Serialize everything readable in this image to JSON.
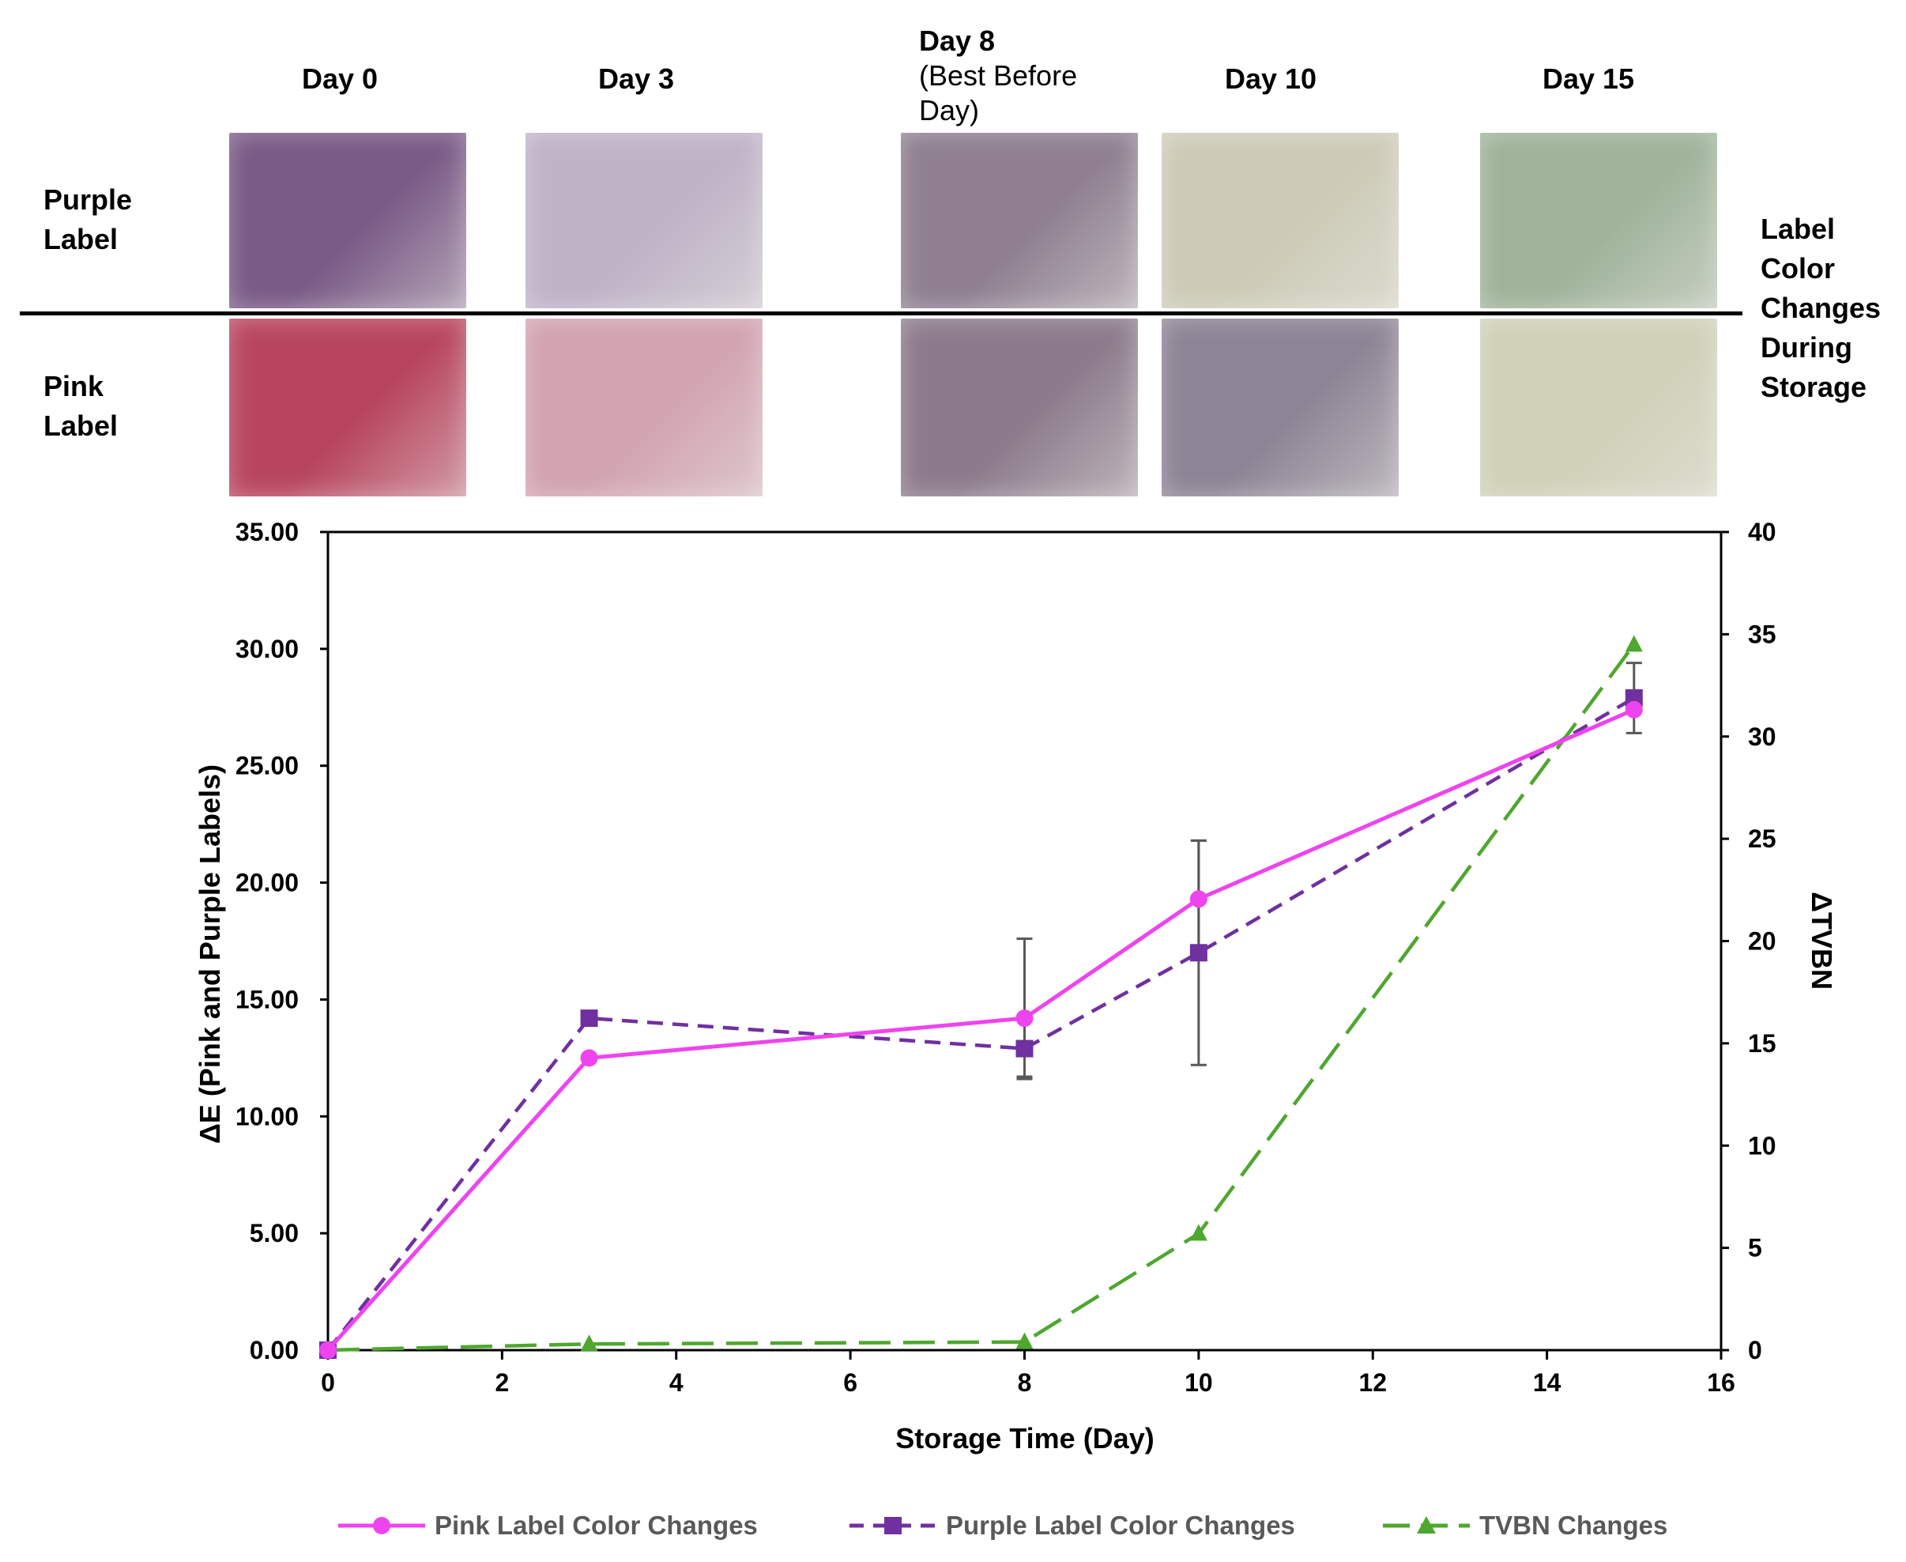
{
  "panel": {
    "days": [
      {
        "label": "Day 0"
      },
      {
        "label": "Day 3"
      },
      {
        "label": "Day 8",
        "note": "(Best Before Day)"
      },
      {
        "label": "Day 10"
      },
      {
        "label": "Day 15"
      }
    ],
    "rows": [
      {
        "label": "Purple Label",
        "swatches": [
          "#7a5a86",
          "#bfb3c7",
          "#8f7f91",
          "#cdcbb7",
          "#9fb39a"
        ]
      },
      {
        "label": "Pink Label",
        "swatches": [
          "#b8455f",
          "#d2a3b1",
          "#8c7b8c",
          "#8d8495",
          "#cfd1b8"
        ]
      }
    ],
    "side_label": "Label Color Changes During Storage"
  },
  "chart_data": {
    "type": "line",
    "xlabel": "Storage Time (Day)",
    "ylabel_left": "ΔE (Pink and Purple Labels)",
    "ylabel_right": "ΔTVBN",
    "xlim": [
      0,
      16
    ],
    "ylim_left": [
      0,
      35
    ],
    "ylim_right": [
      0,
      40
    ],
    "x_ticks": [
      "0",
      "2",
      "4",
      "6",
      "8",
      "10",
      "12",
      "14",
      "16"
    ],
    "y_left_ticks": [
      "0.00",
      "5.00",
      "10.00",
      "15.00",
      "20.00",
      "25.00",
      "30.00",
      "35.00"
    ],
    "y_right_ticks": [
      "0",
      "5",
      "10",
      "15",
      "20",
      "25",
      "30",
      "35",
      "40"
    ],
    "x": [
      0,
      3,
      8,
      10,
      15
    ],
    "series": [
      {
        "name": "Pink Label Color Changes",
        "axis": "left",
        "color": "#ee44ee",
        "marker": "circle",
        "dash": "solid",
        "values": [
          0,
          12.5,
          14.2,
          19.3,
          27.4
        ],
        "errors": [
          0,
          0,
          0,
          2.5,
          0
        ]
      },
      {
        "name": "Purple Label Color Changes",
        "axis": "left",
        "color": "#7030a0",
        "marker": "square",
        "dash": "short",
        "values": [
          0,
          14.2,
          12.9,
          17.0,
          27.9
        ],
        "errors": [
          0,
          0,
          1.2,
          4.8,
          1.5
        ]
      },
      {
        "name": "TVBN Changes",
        "axis": "right",
        "color": "#4ea72e",
        "marker": "triangle",
        "dash": "long",
        "values": [
          0,
          0.3,
          0.4,
          5.7,
          34.5
        ],
        "errors": [
          0,
          0,
          0,
          0,
          0
        ]
      }
    ],
    "extra_errorbars": [
      {
        "x": 8,
        "low": 11.6,
        "high": 17.6,
        "axis": "left"
      }
    ]
  }
}
